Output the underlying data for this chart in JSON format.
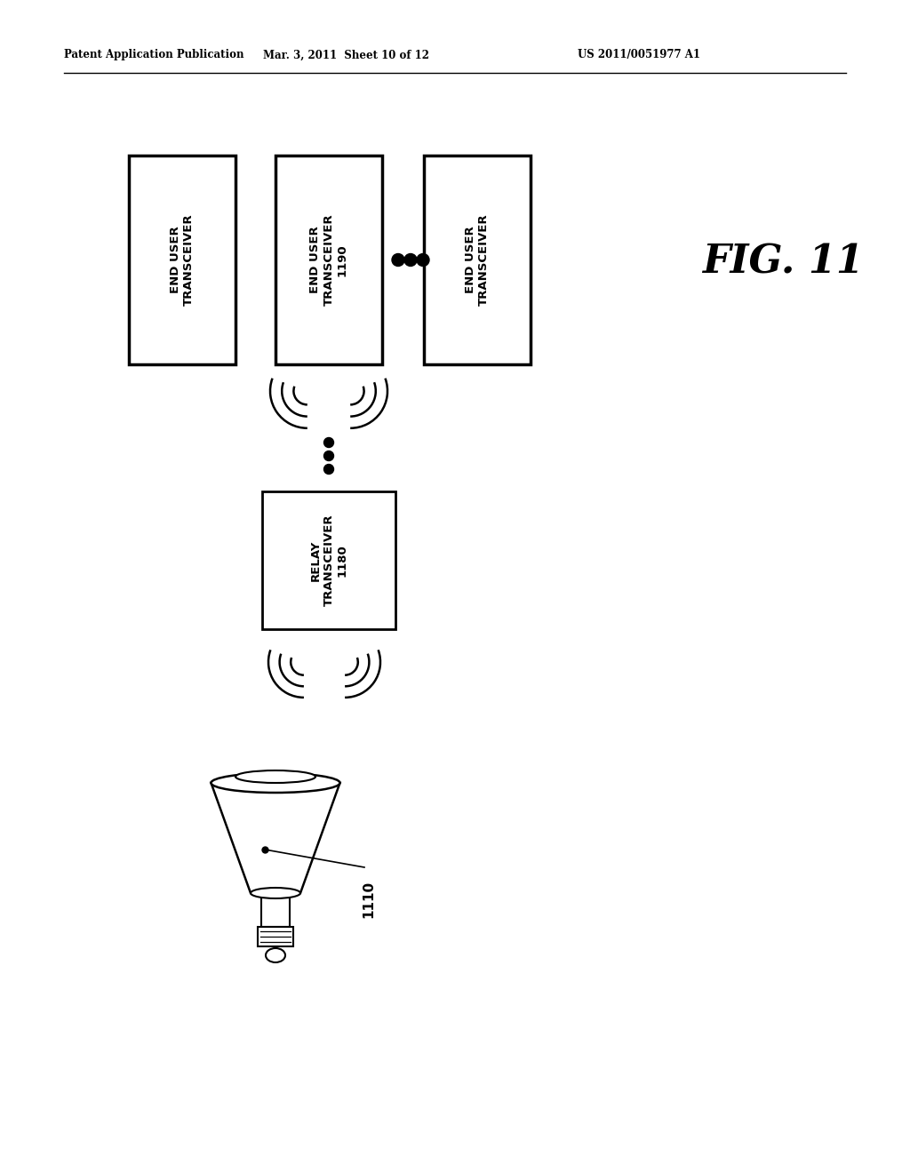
{
  "bg_color": "#ffffff",
  "header_left": "Patent Application Publication",
  "header_mid": "Mar. 3, 2011  Sheet 10 of 12",
  "header_right": "US 2011/0051977 A1",
  "fig_label": "FIG. 11",
  "box1_label": "END USER\nTRANSCEIVER",
  "box2_label": "END USER\nTRANSCEIVER\n1190",
  "box3_label": "END USER\nTRANSCEIVER",
  "relay_label": "RELAY\nTRANSCEIVER\n1180",
  "antenna_label": "1110"
}
